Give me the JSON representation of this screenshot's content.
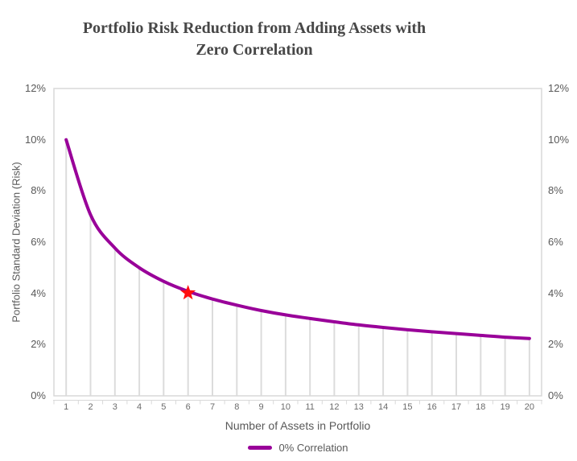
{
  "title": {
    "line1": "Portfolio Risk Reduction from Adding Assets with",
    "line2": "Zero Correlation"
  },
  "chart_data": {
    "type": "line",
    "title": "Portfolio Risk Reduction from Adding Assets with Zero Correlation",
    "categories": [
      "1",
      "2",
      "3",
      "4",
      "5",
      "6",
      "7",
      "8",
      "9",
      "10",
      "11",
      "12",
      "13",
      "14",
      "15",
      "16",
      "17",
      "18",
      "19",
      "20"
    ],
    "series": [
      {
        "name": "0% Correlation",
        "color": "#990099",
        "values": [
          10.0,
          7.07,
          5.77,
          5.0,
          4.47,
          4.08,
          3.78,
          3.54,
          3.33,
          3.16,
          3.02,
          2.89,
          2.77,
          2.67,
          2.58,
          2.5,
          2.43,
          2.36,
          2.29,
          2.24
        ]
      }
    ],
    "xlabel": "Number of Assets in Portfolio",
    "ylabel": "Portfolio Standard Deviation (Risk)",
    "ylim": [
      0,
      12
    ],
    "yticks": [
      0,
      2,
      4,
      6,
      8,
      10,
      12
    ],
    "ytick_labels": [
      "0%",
      "2%",
      "4%",
      "6%",
      "8%",
      "10%",
      "12%"
    ],
    "y_axis_sides": "both",
    "grid": false,
    "drop_lines": true,
    "legend_position": "bottom",
    "annotations": [
      {
        "type": "star",
        "category": "6",
        "value": 4.08,
        "color": "#FF0D0D"
      }
    ]
  },
  "legend": {
    "items": [
      {
        "label": "0% Correlation",
        "color": "#990099"
      }
    ]
  },
  "colors": {
    "line": "#990099",
    "star": "#FF0D0D",
    "plot_border": "#D9D9D9",
    "drop_line": "#DCDCDC",
    "axis_line": "#D9D9D9",
    "tick_text": "#595959",
    "title_text": "#474747",
    "background": "#FFFFFF"
  }
}
